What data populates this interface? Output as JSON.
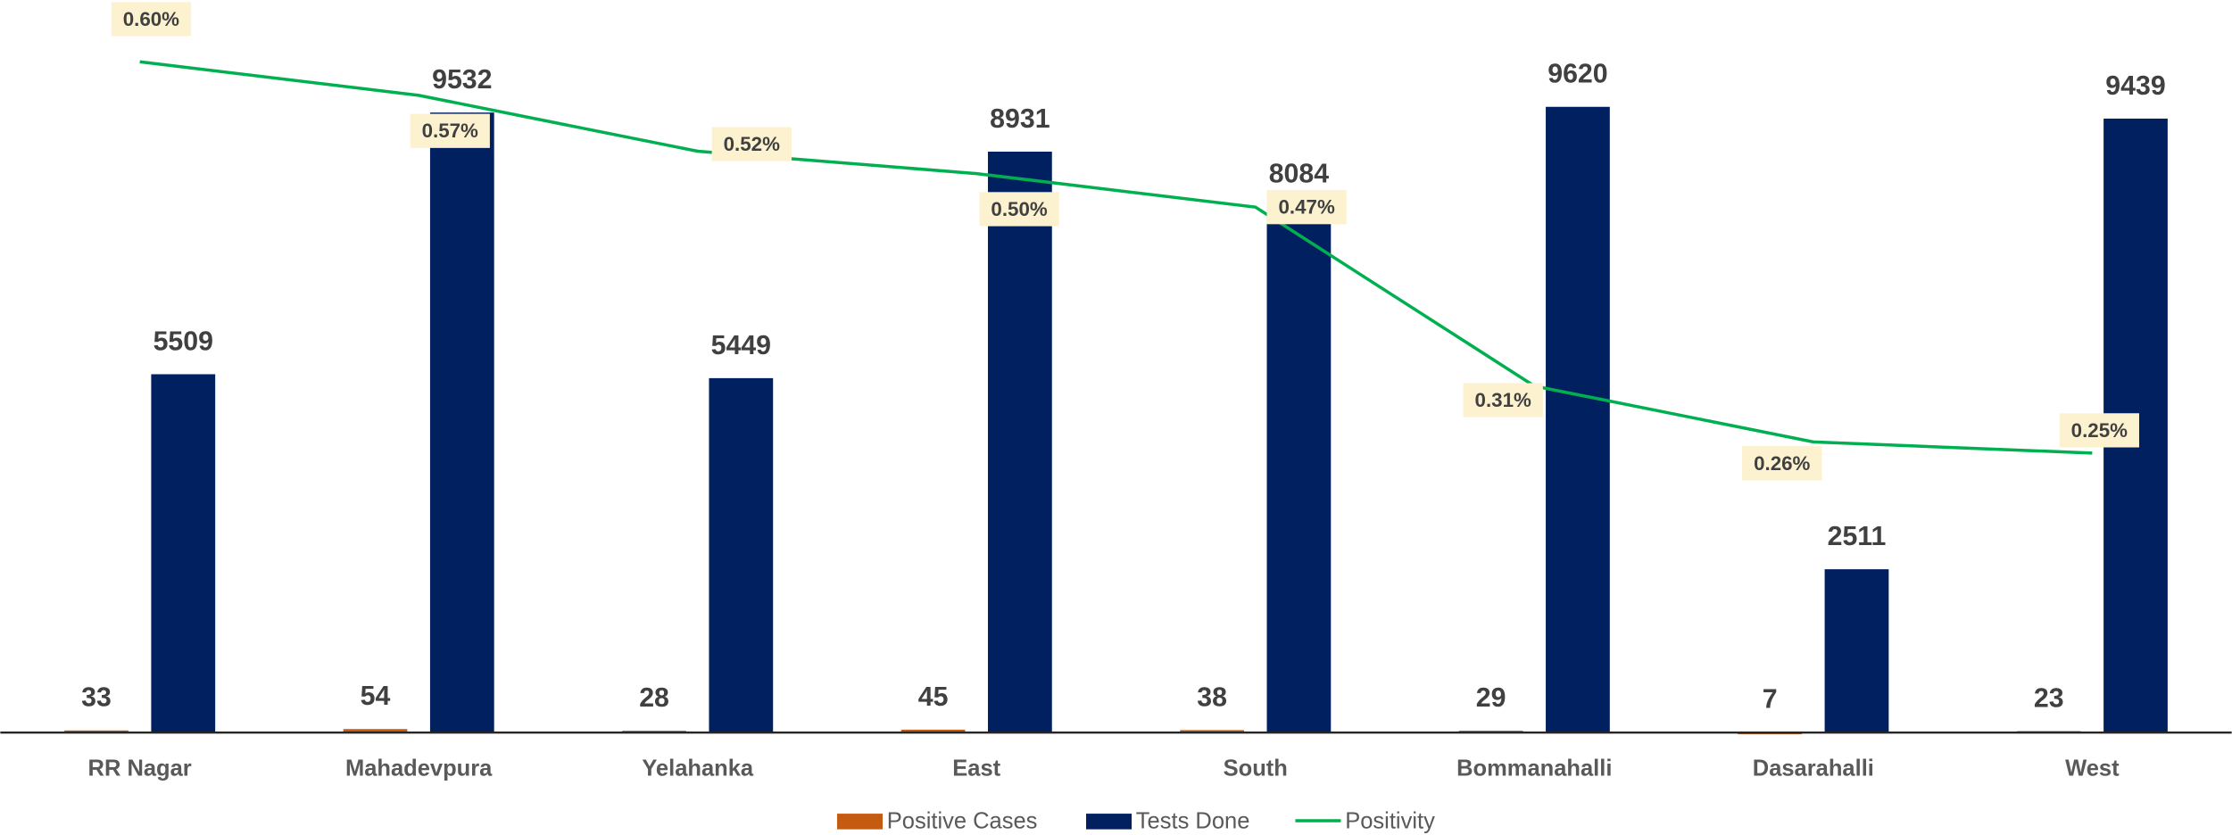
{
  "chart_data": {
    "type": "bar",
    "categories": [
      "RR Nagar",
      "Mahadevpura",
      "Yelahanka",
      "East",
      "South",
      "Bommanahalli",
      "Dasarahalli",
      "West"
    ],
    "series": [
      {
        "name": "Positive Cases",
        "color": "#c55a11",
        "type": "bar",
        "values": [
          33,
          54,
          28,
          45,
          38,
          29,
          7,
          23
        ]
      },
      {
        "name": "Tests Done",
        "color": "#002060",
        "type": "bar",
        "values": [
          5509,
          9532,
          5449,
          8931,
          8084,
          9620,
          2511,
          9439
        ]
      },
      {
        "name": "Positivity",
        "color": "#00b050",
        "type": "line",
        "axis": "y2",
        "values": [
          0.6,
          0.57,
          0.52,
          0.5,
          0.47,
          0.31,
          0.26,
          0.25
        ],
        "value_labels": [
          "0.60%",
          "0.57%",
          "0.52%",
          "0.50%",
          "0.47%",
          "0.31%",
          "0.26%",
          "0.25%"
        ]
      }
    ],
    "ylim": [
      0,
      11000
    ],
    "y2lim": [
      0,
      0.64
    ],
    "legend": "bottom"
  }
}
